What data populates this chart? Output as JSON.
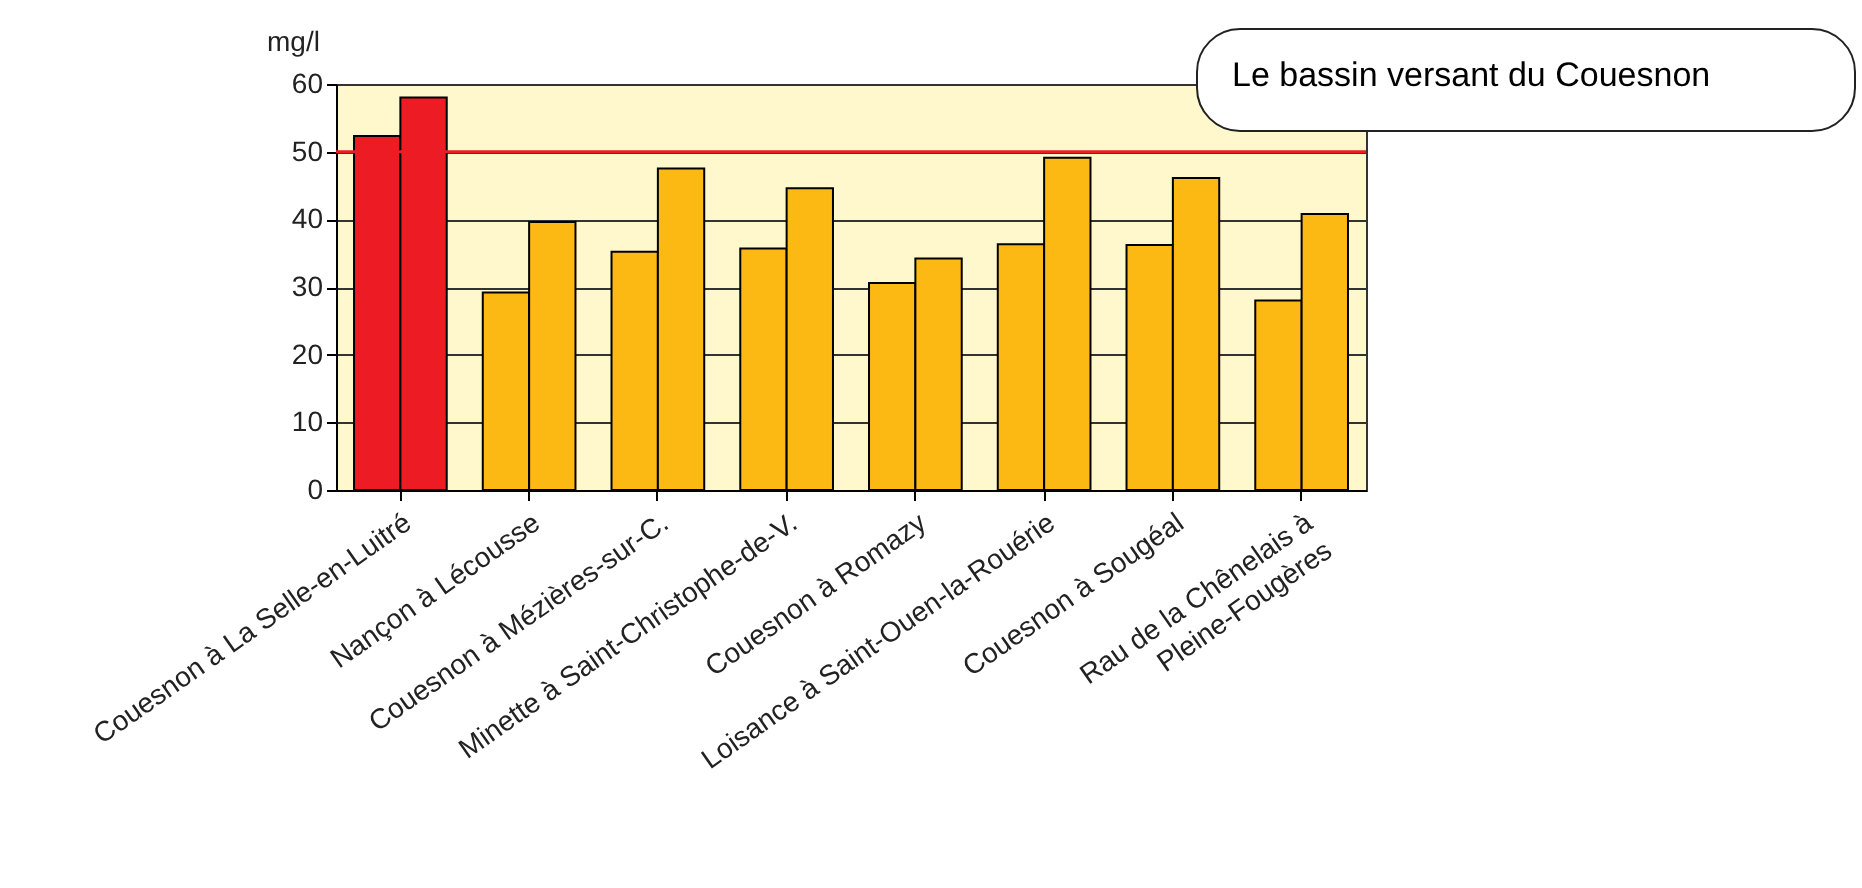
{
  "chart_data": {
    "type": "bar",
    "ylabel": "mg/l",
    "categories": [
      "Couesnon à La Selle-en-Luitré",
      "Nançon à Lécousse",
      "Couesnon  à Mézières-sur-C.",
      "Minette à Saint-Christophe-de-V.",
      "Couesnon à Romazy",
      "Loisance à Saint-Ouen-la-Rouérie",
      "Couesnon à Sougéal",
      "Rau de la Chênelais à\nPleine-Fougères"
    ],
    "series": [
      {
        "colors": [
          "#ed1c24",
          "#fdb913",
          "#fdb913",
          "#fdb913",
          "#fdb913",
          "#fdb913",
          "#fdb913",
          "#fdb913"
        ],
        "values": [
          52.3,
          29.2,
          35.2,
          35.7,
          30.6,
          36.3,
          36.2,
          28.0
        ]
      },
      {
        "colors": [
          "#ed1c24",
          "#fdb913",
          "#fdb913",
          "#fdb913",
          "#fdb913",
          "#fdb913",
          "#fdb913",
          "#fdb913"
        ],
        "values": [
          58.0,
          39.6,
          47.5,
          44.6,
          34.2,
          49.1,
          46.1,
          40.8
        ]
      }
    ],
    "ylim": [
      0,
      60
    ],
    "yticks": [
      0,
      10,
      20,
      30,
      40,
      50,
      60
    ],
    "grid": "y",
    "ref_lines": [
      {
        "axis": "y",
        "value": 50,
        "color": "#ed1c24"
      }
    ],
    "annotations": [
      "Le bassin versant du Couesnon"
    ]
  }
}
